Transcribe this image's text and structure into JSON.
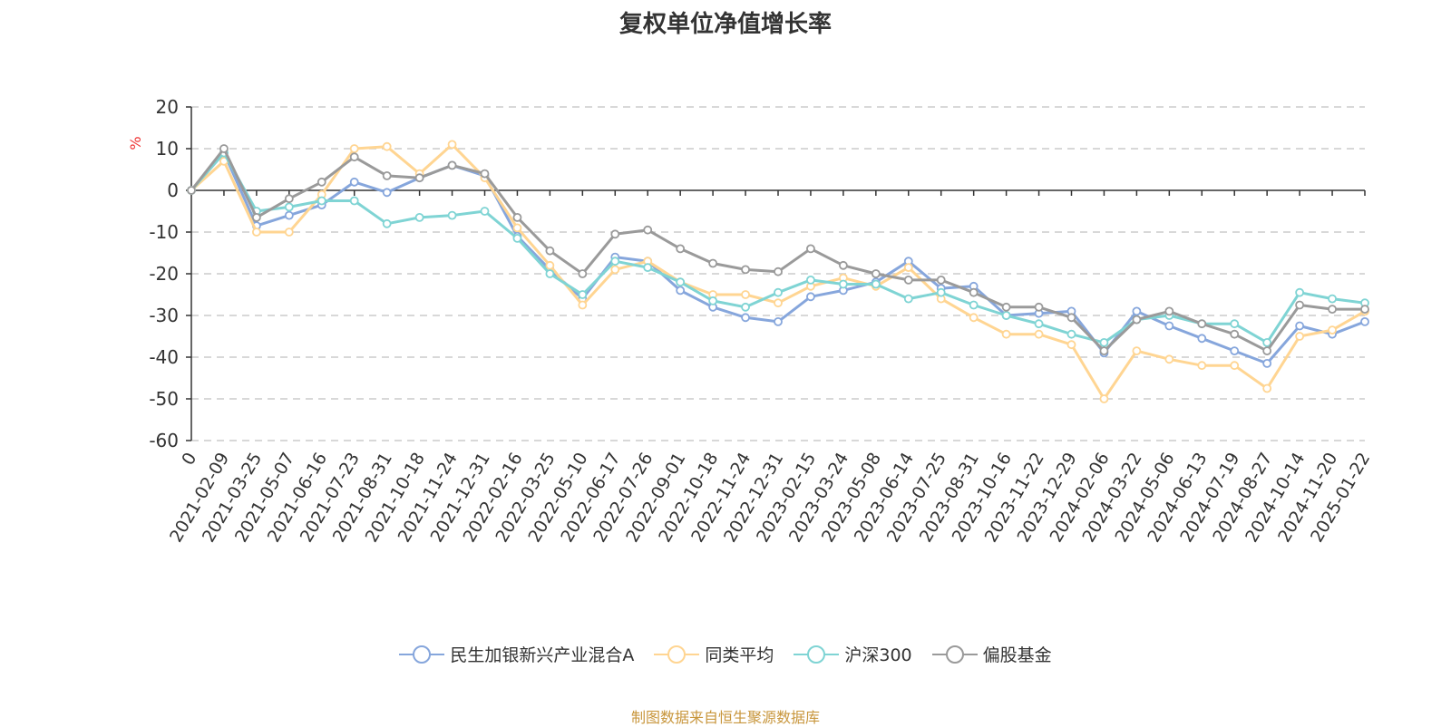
{
  "chart_data": {
    "type": "line",
    "title": "复权单位净值增长率",
    "ylabel": "%",
    "ylim": [
      -60,
      20
    ],
    "yticks": [
      20,
      10,
      0,
      -10,
      -20,
      -30,
      -40,
      -50,
      -60
    ],
    "grid": true,
    "legend_position": "bottom",
    "categories": [
      "0",
      "2021-02-09",
      "2021-03-25",
      "2021-05-07",
      "2021-06-16",
      "2021-07-23",
      "2021-08-31",
      "2021-10-18",
      "2021-11-24",
      "2021-12-31",
      "2022-02-16",
      "2022-03-25",
      "2022-05-10",
      "2022-06-17",
      "2022-07-26",
      "2022-09-01",
      "2022-10-18",
      "2022-11-24",
      "2022-12-31",
      "2023-02-15",
      "2023-03-24",
      "2023-05-08",
      "2023-06-14",
      "2023-07-25",
      "2023-08-31",
      "2023-10-16",
      "2023-11-22",
      "2023-12-29",
      "2024-02-06",
      "2024-03-22",
      "2024-05-06",
      "2024-06-13",
      "2024-07-19",
      "2024-08-27",
      "2024-10-14",
      "2024-11-20",
      "2025-01-22"
    ],
    "series": [
      {
        "name": "民生加银新兴产业混合A",
        "color": "#86a6dc",
        "values": [
          0,
          9,
          -8.5,
          -6,
          -3.5,
          2,
          -0.5,
          3,
          6,
          3.5,
          -11,
          -19,
          -26,
          -16,
          -17,
          -24,
          -28,
          -30.5,
          -31.5,
          -25.5,
          -24,
          -22,
          -17,
          -23.5,
          -23,
          -30,
          -29.5,
          -29,
          -39,
          -29,
          -32.5,
          -35.5,
          -38.5,
          -41.5,
          -32.5,
          -34.5,
          -31.5
        ]
      },
      {
        "name": "同类平均",
        "color": "#ffd592",
        "values": [
          0,
          7,
          -10,
          -10,
          -1,
          10,
          10.5,
          4,
          11,
          3,
          -9,
          -18,
          -27.5,
          -19,
          -17,
          -22,
          -25,
          -25,
          -27,
          -23,
          -21,
          -23,
          -18.5,
          -26,
          -30.5,
          -34.5,
          -34.5,
          -37,
          -50,
          -38.5,
          -40.5,
          -42,
          -42,
          -47.5,
          -35,
          -33.5,
          -29
        ]
      },
      {
        "name": "沪深300",
        "color": "#7fd4d4",
        "values": [
          0,
          9,
          -5,
          -4,
          -2.5,
          -2.5,
          -8,
          -6.5,
          -6,
          -5,
          -11.5,
          -20,
          -25,
          -17,
          -18.5,
          -22,
          -26.5,
          -28,
          -24.5,
          -21.5,
          -22.5,
          -22.5,
          -26,
          -24.5,
          -27.5,
          -30,
          -32,
          -34.5,
          -36.5,
          -31,
          -30,
          -32,
          -32,
          -36.5,
          -24.5,
          -26,
          -27
        ]
      },
      {
        "name": "偏股基金",
        "color": "#9a9a9a",
        "values": [
          0,
          10,
          -6.5,
          -2,
          2,
          8,
          3.5,
          3,
          6,
          4,
          -6.5,
          -14.5,
          -20,
          -10.5,
          -9.5,
          -14,
          -17.5,
          -19,
          -19.5,
          -14,
          -18,
          -20,
          -21.5,
          -21.5,
          -24.5,
          -28,
          -28,
          -30.5,
          -38.5,
          -31,
          -29,
          -32,
          -34.5,
          -38.5,
          -27.5,
          -28.5,
          -28.5
        ]
      }
    ]
  },
  "source": "制图数据来自恒生聚源数据库"
}
